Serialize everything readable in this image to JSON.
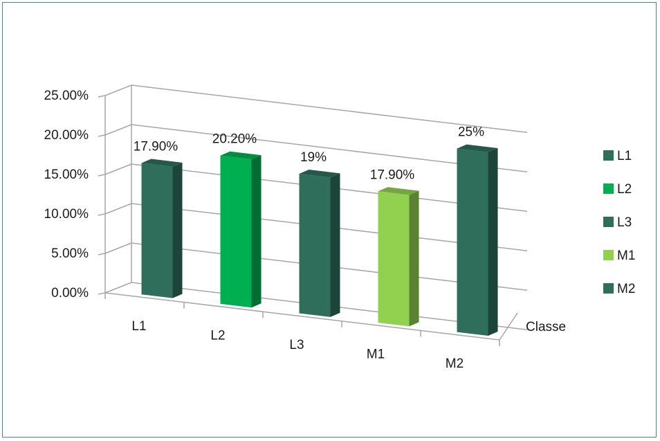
{
  "chart_data": {
    "type": "bar",
    "title": "",
    "xlabel": "Classe",
    "ylabel": "",
    "categories": [
      "L1",
      "L2",
      "L3",
      "M1",
      "M2"
    ],
    "values": [
      0.179,
      0.202,
      0.19,
      0.179,
      0.25
    ],
    "data_labels": [
      "17.90%",
      "20.20%",
      "19%",
      "17.90%",
      "25%"
    ],
    "y_ticks": [
      "0.00%",
      "5.00%",
      "10.00%",
      "15.00%",
      "20.00%",
      "25.00%"
    ],
    "ylim": [
      0,
      0.25
    ],
    "grid": true,
    "legend_position": "right",
    "legend": [
      "L1",
      "L2",
      "L3",
      "M1",
      "M2"
    ],
    "colors": [
      "#2e6e5a",
      "#00b050",
      "#2e6e5a",
      "#92d050",
      "#2e6e5a"
    ]
  }
}
